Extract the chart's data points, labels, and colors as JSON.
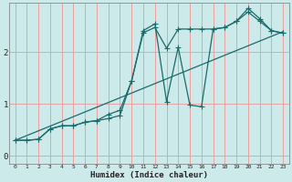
{
  "xlabel": "Humidex (Indice chaleur)",
  "background_color": "#cceaea",
  "grid_color": "#e8a0a0",
  "line_color": "#1a6b6b",
  "xlim": [
    -0.5,
    23.5
  ],
  "ylim": [
    -0.15,
    2.95
  ],
  "yticks": [
    0,
    1,
    2
  ],
  "xticks": [
    0,
    1,
    2,
    3,
    4,
    5,
    6,
    7,
    8,
    9,
    10,
    11,
    12,
    13,
    14,
    15,
    16,
    17,
    18,
    19,
    20,
    21,
    22,
    23
  ],
  "line1_x": [
    0,
    1,
    2,
    3,
    4,
    5,
    6,
    7,
    8,
    9,
    10,
    11,
    12,
    13,
    14,
    15,
    16,
    17,
    18,
    19,
    20,
    21,
    22,
    23
  ],
  "line1_y": [
    0.3,
    0.3,
    0.32,
    0.52,
    0.58,
    0.58,
    0.65,
    0.68,
    0.72,
    0.78,
    1.45,
    2.42,
    2.55,
    1.05,
    2.1,
    0.98,
    0.95,
    2.45,
    2.48,
    2.6,
    2.85,
    2.65,
    2.42,
    2.37
  ],
  "line2_x": [
    0,
    1,
    2,
    3,
    4,
    5,
    6,
    7,
    8,
    9,
    10,
    11,
    12,
    13,
    14,
    15,
    16,
    17,
    18,
    19,
    20,
    21,
    22,
    23
  ],
  "line2_y": [
    0.3,
    0.3,
    0.32,
    0.52,
    0.58,
    0.58,
    0.65,
    0.68,
    0.8,
    0.88,
    1.45,
    2.38,
    2.48,
    2.08,
    2.45,
    2.45,
    2.45,
    2.45,
    2.48,
    2.6,
    2.78,
    2.6,
    2.42,
    2.37
  ],
  "line3_x": [
    0,
    23
  ],
  "line3_y": [
    0.3,
    2.4
  ]
}
